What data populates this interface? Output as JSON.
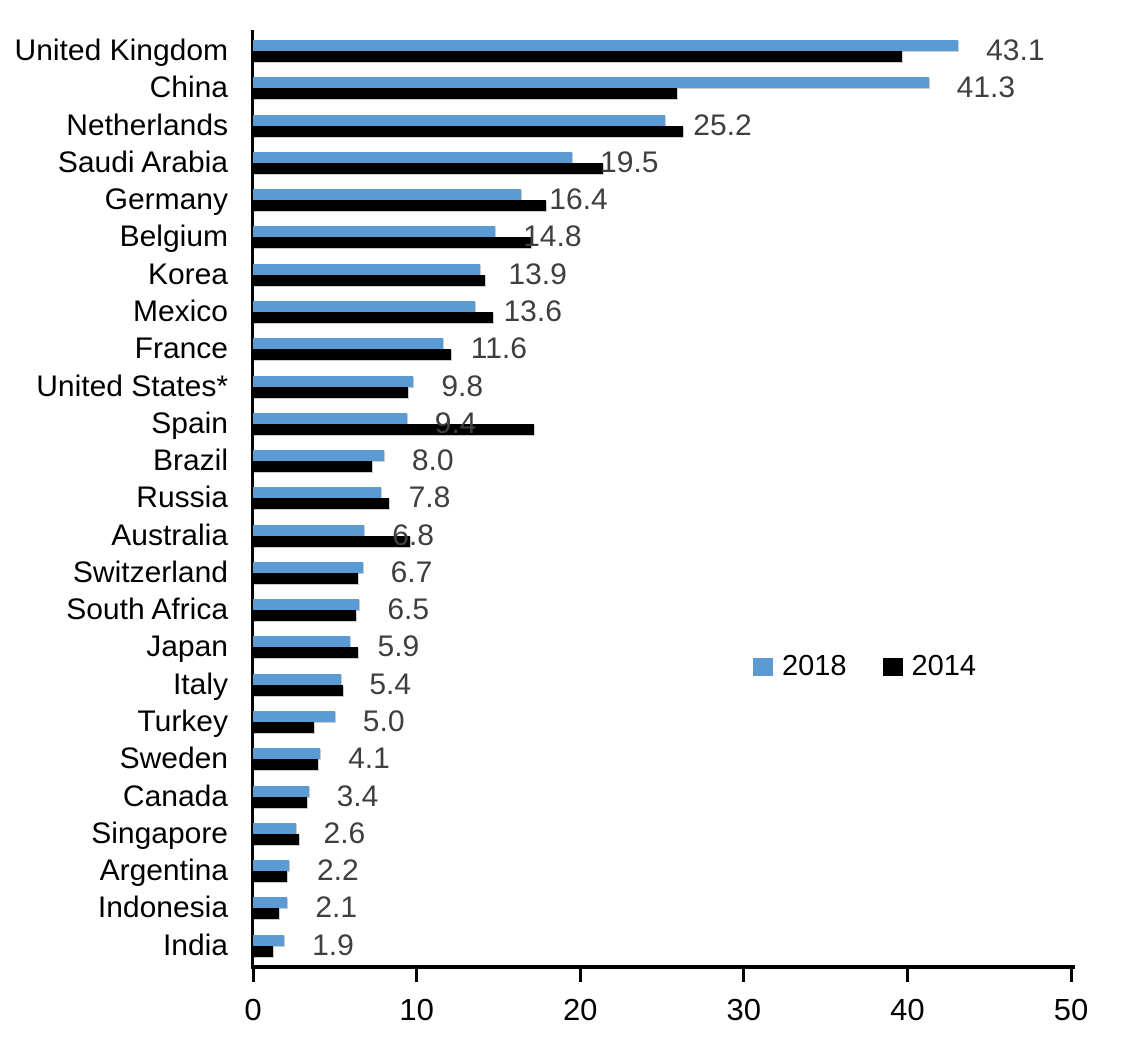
{
  "chart_data": {
    "type": "bar",
    "orientation": "horizontal",
    "title": "",
    "xlabel": "",
    "ylabel": "",
    "categories": [
      "United Kingdom",
      "China",
      "Netherlands",
      "Saudi Arabia",
      "Germany",
      "Belgium",
      "Korea",
      "Mexico",
      "France",
      "United States*",
      "Spain",
      "Brazil",
      "Russia",
      "Australia",
      "Switzerland",
      "South Africa",
      "Japan",
      "Italy",
      "Turkey",
      "Sweden",
      "Canada",
      "Singapore",
      "Argentina",
      "Indonesia",
      "India"
    ],
    "series": [
      {
        "name": "2018",
        "color": "#5B9BD5",
        "values": [
          43.1,
          41.3,
          25.2,
          19.5,
          16.4,
          14.8,
          13.9,
          13.6,
          11.6,
          9.8,
          9.4,
          8.0,
          7.8,
          6.8,
          6.7,
          6.5,
          5.9,
          5.4,
          5.0,
          4.1,
          3.4,
          2.6,
          2.2,
          2.1,
          1.9
        ]
      },
      {
        "name": "2014",
        "color": "#000000",
        "values": [
          39.7,
          25.9,
          26.3,
          21.4,
          17.9,
          17.0,
          14.2,
          14.7,
          12.1,
          9.5,
          17.2,
          7.3,
          8.3,
          9.6,
          6.4,
          6.3,
          6.4,
          5.5,
          3.7,
          4.0,
          3.3,
          2.8,
          2.1,
          1.6,
          1.2
        ]
      }
    ],
    "data_labels": {
      "shown_for_series": "2018",
      "color": "#3F3F3F",
      "decimals": 1
    },
    "xlim": [
      0,
      50
    ],
    "xticks": [
      0,
      10,
      20,
      30,
      40,
      50
    ],
    "grid": false,
    "legend": {
      "position": "middle-right",
      "entries": [
        "2018",
        "2014"
      ]
    }
  },
  "colors": {
    "bar_2018": "#5B9BD5",
    "bar_2014": "#000000",
    "value_label": "#3F3F3F",
    "axis": "#000000",
    "text": "#000000",
    "background": "#FFFFFF"
  }
}
